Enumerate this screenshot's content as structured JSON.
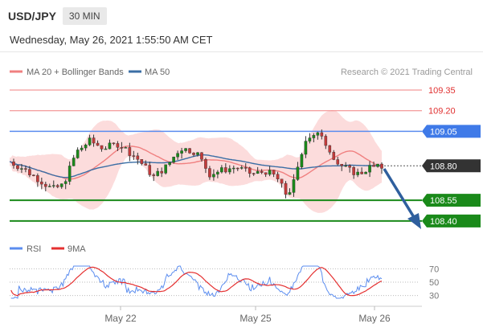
{
  "header": {
    "symbol": "USD/JPY",
    "timeframe": "30 MIN",
    "timestamp": "Wednesday, May 26, 2021 1:55:50 AM CET"
  },
  "legend": {
    "ma20_bb": "MA 20 + Bollinger Bands",
    "ma50": "MA 50",
    "copyright": "Research © 2021 Trading Central",
    "rsi": "RSI",
    "rsi_ma": "9MA"
  },
  "colors": {
    "resistance": "#f08080",
    "pivot": "#5b8def",
    "support": "#1a8a1a",
    "current": "#333333",
    "candle_up": "#1a8a1a",
    "candle_down": "#c43a3a",
    "ma20": "#f08080",
    "ma50": "#3b6ea5",
    "band_fill": "#fcdcdc",
    "arrow": "#2f5f9e",
    "rsi_line": "#5b8def",
    "rsi_ma_line": "#e53030"
  },
  "chart_data": [
    {
      "type": "candlestick",
      "ylim": [
        108.3,
        109.42
      ],
      "x_labels": [
        "May 22",
        "May 25",
        "May 26"
      ],
      "levels": [
        {
          "name": "resistance-2",
          "value": 109.35,
          "label": "109.35",
          "kind": "resistance"
        },
        {
          "name": "resistance-1",
          "value": 109.2,
          "label": "109.20",
          "kind": "resistance"
        },
        {
          "name": "pivot",
          "value": 109.05,
          "label": "109.05",
          "kind": "pivot"
        },
        {
          "name": "current",
          "value": 108.8,
          "label": "108.80",
          "kind": "current"
        },
        {
          "name": "support-1",
          "value": 108.55,
          "label": "108.55",
          "kind": "support"
        },
        {
          "name": "support-2",
          "value": 108.4,
          "label": "108.40",
          "kind": "support"
        }
      ],
      "series": [
        {
          "name": "MA 20 + Bollinger Bands"
        },
        {
          "name": "MA 50"
        }
      ]
    },
    {
      "type": "line",
      "title": "RSI",
      "ylim": [
        20,
        80
      ],
      "y_ticks": [
        70,
        50,
        30
      ],
      "series": [
        {
          "name": "RSI"
        },
        {
          "name": "9MA"
        }
      ]
    }
  ]
}
